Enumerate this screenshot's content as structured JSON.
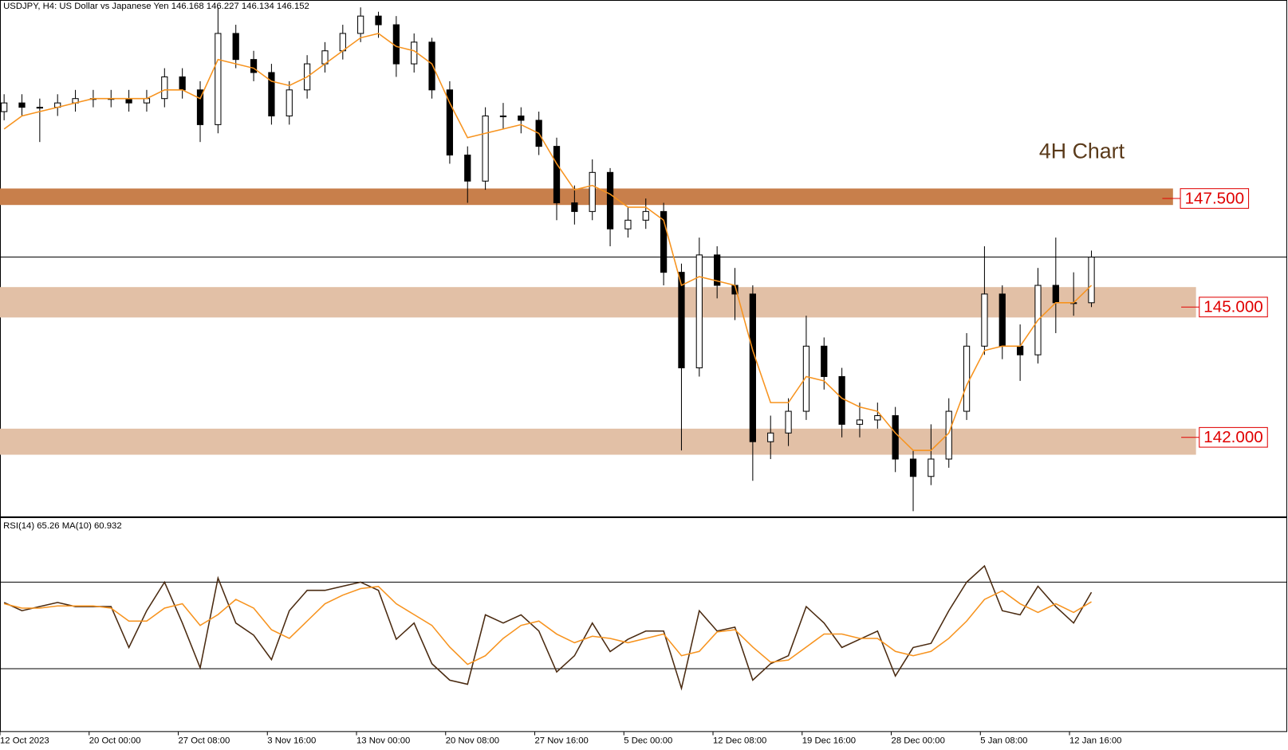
{
  "chart_data": {
    "type": "candlestick",
    "header": "USDJPY, H4:  US Dollar vs Japanese Yen  146.168 146.227 146.134 146.152",
    "annotation": "4H Chart",
    "categories": [
      "12 Oct 2023",
      null,
      null,
      null,
      null,
      "20 Oct 00:00",
      null,
      null,
      null,
      null,
      "27 Oct 08:00",
      null,
      null,
      null,
      null,
      "3 Nov 16:00",
      null,
      null,
      null,
      null,
      "13 Nov 00:00",
      null,
      null,
      null,
      null,
      "20 Nov 08:00",
      null,
      null,
      null,
      null,
      "27 Nov 16:00",
      null,
      null,
      null,
      null,
      "5 Dec 00:00",
      null,
      null,
      null,
      null,
      "12 Dec 08:00",
      null,
      null,
      null,
      null,
      "19 Dec 16:00",
      null,
      null,
      null,
      null,
      "28 Dec 00:00",
      null,
      null,
      null,
      null,
      "5 Jan 08:00",
      null,
      null,
      null,
      null,
      "12 Jan 16:00",
      null
    ],
    "ohlc": [
      [
        149.5,
        149.9,
        149.3,
        149.7
      ],
      [
        149.7,
        149.9,
        149.4,
        149.6
      ],
      [
        149.6,
        149.8,
        148.8,
        149.6
      ],
      [
        149.6,
        149.9,
        149.4,
        149.7
      ],
      [
        149.7,
        150.0,
        149.5,
        149.8
      ],
      [
        149.8,
        150.0,
        149.6,
        149.8
      ],
      [
        149.8,
        150.0,
        149.6,
        149.8
      ],
      [
        149.8,
        150.0,
        149.5,
        149.7
      ],
      [
        149.7,
        150.0,
        149.5,
        149.8
      ],
      [
        149.8,
        150.5,
        149.6,
        150.3
      ],
      [
        150.3,
        150.5,
        149.8,
        150.0
      ],
      [
        150.0,
        150.2,
        148.8,
        149.2
      ],
      [
        149.2,
        151.9,
        149.0,
        151.3
      ],
      [
        151.3,
        151.5,
        150.5,
        150.7
      ],
      [
        150.7,
        150.9,
        150.2,
        150.4
      ],
      [
        150.4,
        150.6,
        149.2,
        149.4
      ],
      [
        149.4,
        150.2,
        149.2,
        150.0
      ],
      [
        150.0,
        150.8,
        149.8,
        150.6
      ],
      [
        150.6,
        151.1,
        150.4,
        150.9
      ],
      [
        150.9,
        151.5,
        150.7,
        151.3
      ],
      [
        151.3,
        151.9,
        151.1,
        151.7
      ],
      [
        151.7,
        151.8,
        151.2,
        151.5
      ],
      [
        151.5,
        151.7,
        150.3,
        150.6
      ],
      [
        150.6,
        151.3,
        150.4,
        151.1
      ],
      [
        151.1,
        151.2,
        149.8,
        150.0
      ],
      [
        150.0,
        150.2,
        148.3,
        148.5
      ],
      [
        148.5,
        148.7,
        147.4,
        147.9
      ],
      [
        147.9,
        149.6,
        147.7,
        149.4
      ],
      [
        149.4,
        149.7,
        149.1,
        149.4
      ],
      [
        149.4,
        149.6,
        149.0,
        149.3
      ],
      [
        149.3,
        149.5,
        148.5,
        148.7
      ],
      [
        148.7,
        148.9,
        147.0,
        147.4
      ],
      [
        147.4,
        147.8,
        146.9,
        147.2
      ],
      [
        147.2,
        148.4,
        147.0,
        148.1
      ],
      [
        148.1,
        148.2,
        146.4,
        146.8
      ],
      [
        146.8,
        147.3,
        146.6,
        147.0
      ],
      [
        147.0,
        147.5,
        146.8,
        147.2
      ],
      [
        147.2,
        147.4,
        145.5,
        145.8
      ],
      [
        145.8,
        146.0,
        141.7,
        143.6
      ],
      [
        143.6,
        146.6,
        143.4,
        146.2
      ],
      [
        146.2,
        146.4,
        145.2,
        145.5
      ],
      [
        145.5,
        145.9,
        144.7,
        145.3
      ],
      [
        145.3,
        145.5,
        141.0,
        141.9
      ],
      [
        141.9,
        142.5,
        141.5,
        142.1
      ],
      [
        142.1,
        142.9,
        141.8,
        142.6
      ],
      [
        142.6,
        144.8,
        142.4,
        144.1
      ],
      [
        144.1,
        144.3,
        143.1,
        143.4
      ],
      [
        143.4,
        143.6,
        142.0,
        142.3
      ],
      [
        142.3,
        142.8,
        142.0,
        142.4
      ],
      [
        142.4,
        142.8,
        142.2,
        142.5
      ],
      [
        142.5,
        142.7,
        141.2,
        141.5
      ],
      [
        141.5,
        141.7,
        140.3,
        141.1
      ],
      [
        141.1,
        142.3,
        140.9,
        141.5
      ],
      [
        141.5,
        142.9,
        141.3,
        142.6
      ],
      [
        142.6,
        144.4,
        142.4,
        144.1
      ],
      [
        144.1,
        146.4,
        143.9,
        145.3
      ],
      [
        145.3,
        145.5,
        143.8,
        144.1
      ],
      [
        144.1,
        144.6,
        143.3,
        143.9
      ],
      [
        143.9,
        145.9,
        143.7,
        145.5
      ],
      [
        145.5,
        146.6,
        144.4,
        145.1
      ],
      [
        145.1,
        145.8,
        144.8,
        145.1
      ],
      [
        145.1,
        146.3,
        145.0,
        146.15
      ]
    ],
    "ma": {
      "color": "#f7931e",
      "values": [
        149.1,
        149.4,
        149.5,
        149.6,
        149.7,
        149.8,
        149.8,
        149.8,
        149.8,
        150.0,
        150.0,
        149.8,
        150.7,
        150.6,
        150.5,
        150.2,
        150.1,
        150.3,
        150.6,
        150.9,
        151.2,
        151.3,
        151.0,
        150.9,
        150.6,
        149.7,
        148.9,
        149.0,
        149.1,
        149.2,
        149.0,
        148.3,
        147.7,
        147.8,
        147.6,
        147.3,
        147.3,
        147.0,
        145.5,
        145.7,
        145.6,
        145.5,
        144.0,
        142.8,
        142.8,
        143.4,
        143.3,
        142.9,
        142.7,
        142.6,
        142.1,
        141.7,
        141.7,
        142.1,
        143.2,
        144.0,
        144.1,
        144.1,
        144.7,
        145.1,
        145.1,
        145.5
      ]
    },
    "ylim": [
      140.18,
      152.07
    ],
    "current_price": 146.152,
    "zones": [
      {
        "value": 147.5,
        "label": "147.500",
        "from": 147.35,
        "to": 147.73,
        "color": "#c87f4b"
      },
      {
        "value": 145,
        "label": "145.000",
        "from": 144.76,
        "to": 145.46,
        "color": "#e2c0a6"
      },
      {
        "value": 142,
        "label": "142.000",
        "from": 141.6,
        "to": 142.2,
        "color": "#e2c0a6"
      }
    ],
    "rsi": {
      "header": "RSI(14) 65.26 MA(10) 60.932",
      "ylim": [
        0,
        100
      ],
      "levels": [
        70,
        30
      ],
      "series": [
        {
          "color": "#4a2a10",
          "values": [
            60.6,
            56.8,
            58.7,
            60.6,
            58.7,
            58.7,
            58.7,
            39.8,
            56.8,
            70.0,
            51.1,
            30.4,
            71.9,
            51.1,
            45.5,
            34.2,
            56.8,
            66.2,
            66.2,
            68.1,
            70.0,
            66.2,
            43.6,
            51.1,
            32.3,
            24.7,
            22.8,
            54.9,
            51.1,
            54.9,
            47.4,
            28.5,
            36.0,
            51.1,
            37.9,
            43.6,
            47.4,
            47.4,
            20.9,
            56.8,
            47.4,
            49.2,
            24.7,
            32.3,
            36.0,
            58.7,
            51.1,
            39.8,
            43.6,
            47.4,
            26.6,
            39.8,
            41.7,
            56.8,
            70.0,
            77.5,
            56.8,
            54.9,
            68.1,
            58.7,
            51.1,
            65.3
          ]
        },
        {
          "color": "#f7931e",
          "values": [
            60,
            58,
            58,
            59,
            59,
            59,
            58,
            52,
            52,
            58,
            60,
            50,
            55,
            62,
            58,
            48,
            44,
            52,
            60,
            64,
            67,
            68,
            60,
            55,
            50,
            40,
            32,
            36,
            44,
            50,
            52,
            46,
            42,
            45,
            44,
            42,
            44,
            46,
            36,
            38,
            47,
            48,
            40,
            33,
            34,
            40,
            46,
            46,
            44,
            44,
            38,
            36,
            38,
            44,
            52,
            62,
            66,
            60,
            56,
            60,
            56,
            60.9
          ]
        }
      ]
    }
  }
}
